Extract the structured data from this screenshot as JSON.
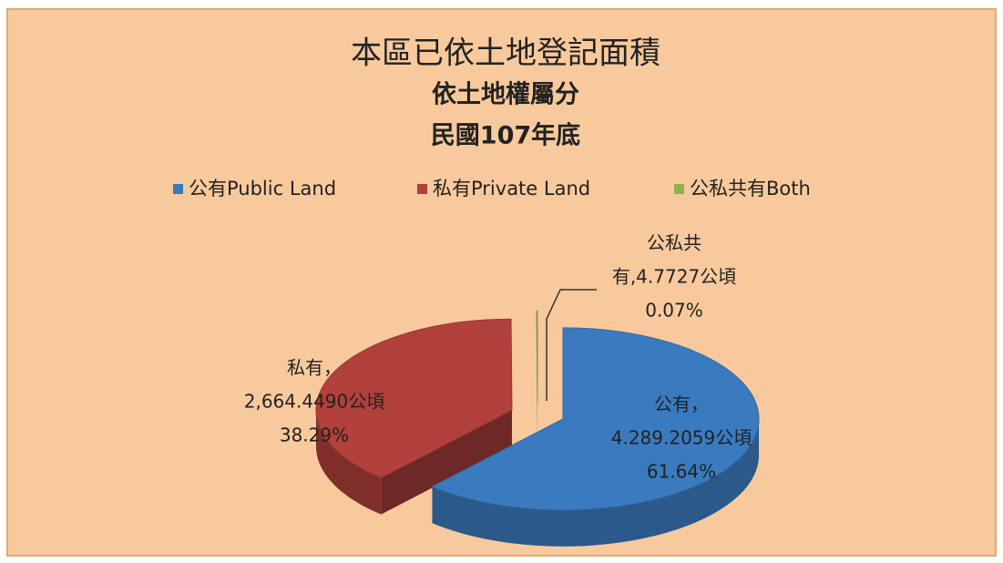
{
  "chart_data": {
    "type": "pie",
    "title": "本區已依土地登記面積",
    "subtitle": [
      "依土地權屬分",
      "民國107年底"
    ],
    "categories": [
      "公有Public Land",
      "私有Private Land",
      "公私共有Both"
    ],
    "values": [
      61.64,
      38.29,
      0.07
    ],
    "value_labels": [
      "61.64%",
      "38.29%",
      "0.07%"
    ],
    "label_names": [
      "公有，",
      "私有，",
      "公私共"
    ],
    "areas": [
      4289.2059,
      2664.449,
      4.7727
    ],
    "area_labels": [
      "4.289.2059公頃",
      "2,664.4490公頃",
      "有,4.7727公頃"
    ],
    "colors": [
      "#3a7bc0",
      "#b2403b",
      "#8db24b"
    ],
    "legend": "top"
  }
}
